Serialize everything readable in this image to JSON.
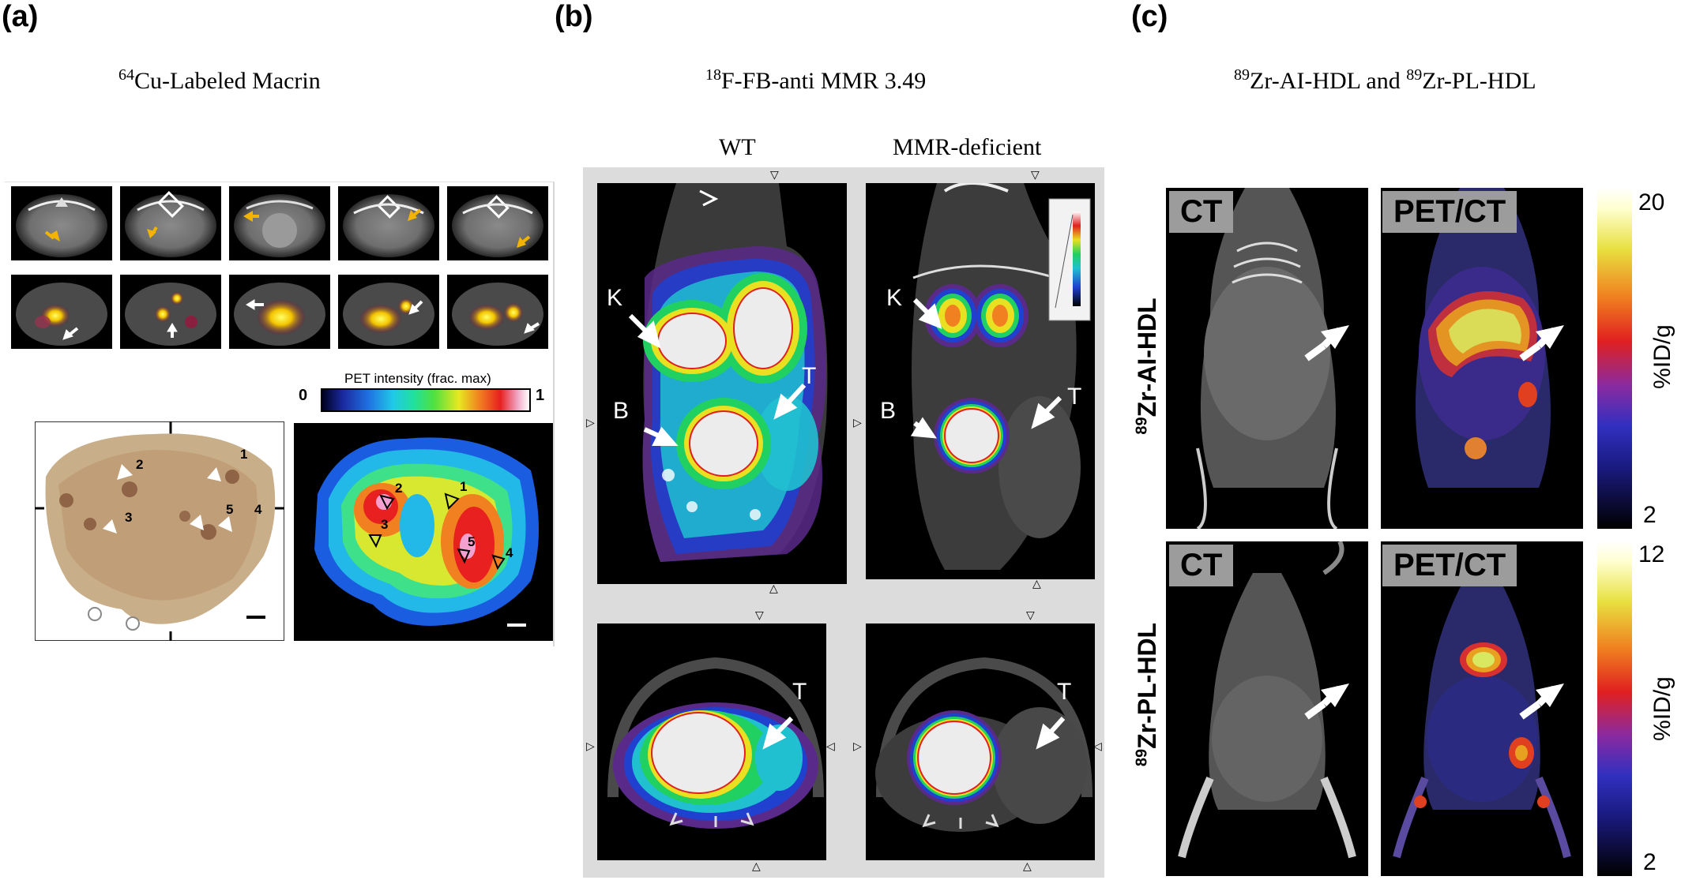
{
  "panel_a": {
    "letter": "(a)",
    "title_sup": "64",
    "title_main": "Cu-Labeled Macrin",
    "colorbar": {
      "title": "PET intensity (frac. max)",
      "min_label": "0",
      "max_label": "1"
    },
    "liver_labels": [
      "1",
      "2",
      "3",
      "4",
      "5"
    ],
    "colors": {
      "arrow_top": "#f2b400",
      "arrow_bottom": "#ffffff"
    }
  },
  "panel_b": {
    "letter": "(b)",
    "title_sup": "18",
    "title_main": "F-FB-anti MMR 3.49",
    "col_wt": "WT",
    "col_mmr": "MMR-deficient",
    "labels": {
      "kidney": "K",
      "bladder": "B",
      "tumor": "T"
    }
  },
  "panel_c": {
    "letter": "(c)",
    "title_sup1": "89",
    "title_part1": "Zr-AI-HDL  and ",
    "title_sup2": "89",
    "title_part2": "Zr-PL-HDL",
    "ct_label": "CT",
    "petct_label": "PET/CT",
    "row1_sup": "89",
    "row1_label": "Zr-AI-HDL",
    "row2_sup": "89",
    "row2_label": "Zr-PL-HDL",
    "cbar1": {
      "max": "20",
      "min": "2",
      "unit": "%ID/g"
    },
    "cbar2": {
      "max": "12",
      "min": "2",
      "unit": "%ID/g"
    }
  }
}
